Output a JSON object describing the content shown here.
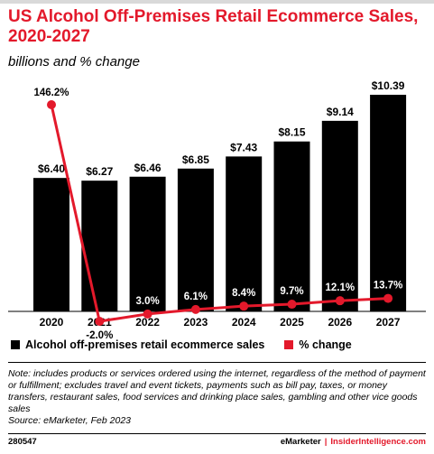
{
  "title": "US Alcohol Off-Premises Retail Ecommerce Sales, 2020-2027",
  "subtitle": "billions and % change",
  "chart_data": {
    "type": "bar",
    "categories": [
      "2020",
      "2021",
      "2022",
      "2023",
      "2024",
      "2025",
      "2026",
      "2027"
    ],
    "series": [
      {
        "name": "Alcohol off-premises retail ecommerce sales",
        "type": "bar",
        "values": [
          6.4,
          6.27,
          6.46,
          6.85,
          7.43,
          8.15,
          9.14,
          10.39
        ],
        "labels": [
          "$6.40",
          "$6.27",
          "$6.46",
          "$6.85",
          "$7.43",
          "$8.15",
          "$9.14",
          "$10.39"
        ],
        "color": "#000000"
      },
      {
        "name": "% change",
        "type": "line",
        "values": [
          146.2,
          -2.0,
          3.0,
          6.1,
          8.4,
          9.7,
          12.1,
          13.7
        ],
        "labels": [
          "146.2%",
          "-2.0%",
          "3.0%",
          "6.1%",
          "8.4%",
          "9.7%",
          "12.1%",
          "13.7%"
        ],
        "color": "#e3192b"
      }
    ],
    "ylim_bars": [
      0,
      10.39
    ],
    "ylim_pct": [
      -2.0,
      146.2
    ],
    "grid": false,
    "legend_position": "bottom-left"
  },
  "legend": {
    "sales_label": "Alcohol off-premises retail ecommerce sales",
    "pct_label": "% change"
  },
  "note": "Note: includes products or services ordered using the internet, regardless of the method of payment or fulfillment; excludes travel and event tickets, payments such as bill pay, taxes, or money transfers, restaurant sales, food services and drinking place sales, gambling and other vice goods sales",
  "source": "Source: eMarketer, Feb 2023",
  "footer": {
    "chart_id": "280547",
    "brand": "eMarketer",
    "separator": "|",
    "site": "InsiderIntelligence.com"
  }
}
